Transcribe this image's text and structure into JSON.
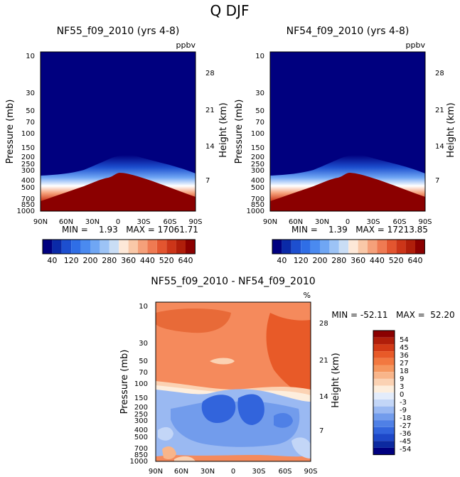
{
  "page": {
    "title": "Q DJF"
  },
  "chart_data": [
    {
      "type": "heatmap",
      "title": "NF55_f09_2010 (yrs 4-8)",
      "units": "ppbv",
      "ylabel": "Pressure (mb)",
      "ylabel_right": "Height (km)",
      "x_ticks": [
        "90N",
        "60N",
        "30N",
        "0",
        "30S",
        "60S",
        "90S"
      ],
      "y_ticks": [
        "10",
        "30",
        "50",
        "70",
        "100",
        "150",
        "200",
        "250",
        "300",
        "400",
        "500",
        "700",
        "850",
        "1000"
      ],
      "y_ticks_right": [
        "28",
        "21",
        "14",
        "7"
      ],
      "ylim": [
        1000,
        10
      ],
      "stats": "MIN =    1.93   MAX = 17061.71",
      "min": 1.93,
      "max": 17061.71,
      "surface_pressure_boundary_mb": [
        450,
        430,
        400,
        370,
        330,
        300,
        280,
        260,
        280,
        300,
        330,
        370,
        420,
        470,
        520
      ],
      "colorbar": {
        "orientation": "horizontal",
        "labels": [
          "40",
          "120",
          "200",
          "280",
          "360",
          "440",
          "520",
          "640"
        ],
        "levels": [
          40,
          80,
          120,
          160,
          200,
          240,
          280,
          320,
          360,
          400,
          440,
          480,
          520,
          560,
          600,
          640
        ],
        "colors": [
          "#00007f",
          "#0a2aa8",
          "#1d4fcf",
          "#2f6ee6",
          "#4a8af0",
          "#6fa6f4",
          "#9cc3f6",
          "#c9ddf5",
          "#fde8d8",
          "#f9c8a8",
          "#f5a07a",
          "#ef7a52",
          "#e3552f",
          "#cc3518",
          "#b01e0a",
          "#8b0000"
        ]
      }
    },
    {
      "type": "heatmap",
      "title": "NF54_f09_2010 (yrs 4-8)",
      "units": "ppbv",
      "ylabel": "Pressure (mb)",
      "ylabel_right": "Height (km)",
      "x_ticks": [
        "90N",
        "60N",
        "30N",
        "0",
        "30S",
        "60S",
        "90S"
      ],
      "y_ticks": [
        "10",
        "30",
        "50",
        "70",
        "100",
        "150",
        "200",
        "250",
        "300",
        "400",
        "500",
        "700",
        "850",
        "1000"
      ],
      "y_ticks_right": [
        "28",
        "21",
        "14",
        "7"
      ],
      "ylim": [
        1000,
        10
      ],
      "stats": "MIN =    1.39   MAX = 17213.85",
      "min": 1.39,
      "max": 17213.85,
      "surface_pressure_boundary_mb": [
        450,
        430,
        400,
        370,
        330,
        300,
        280,
        260,
        280,
        300,
        330,
        370,
        420,
        470,
        520
      ],
      "colorbar": {
        "orientation": "horizontal",
        "labels": [
          "40",
          "120",
          "200",
          "280",
          "360",
          "440",
          "520",
          "640"
        ],
        "levels": [
          40,
          80,
          120,
          160,
          200,
          240,
          280,
          320,
          360,
          400,
          440,
          480,
          520,
          560,
          600,
          640
        ],
        "colors": [
          "#00007f",
          "#0a2aa8",
          "#1d4fcf",
          "#2f6ee6",
          "#4a8af0",
          "#6fa6f4",
          "#9cc3f6",
          "#c9ddf5",
          "#fde8d8",
          "#f9c8a8",
          "#f5a07a",
          "#ef7a52",
          "#e3552f",
          "#cc3518",
          "#b01e0a",
          "#8b0000"
        ]
      }
    },
    {
      "type": "heatmap",
      "title": "NF55_f09_2010 - NF54_f09_2010",
      "units": "%",
      "ylabel": "Pressure (mb)",
      "ylabel_right": "Height (km)",
      "x_ticks": [
        "90N",
        "60N",
        "30N",
        "0",
        "30S",
        "60S",
        "90S"
      ],
      "y_ticks": [
        "10",
        "30",
        "50",
        "70",
        "100",
        "150",
        "200",
        "250",
        "300",
        "400",
        "500",
        "700",
        "850",
        "1000"
      ],
      "y_ticks_right": [
        "28",
        "21",
        "14",
        "7"
      ],
      "ylim": [
        1000,
        10
      ],
      "stats": "MIN = -52.11   MAX =  52.20",
      "min": -52.11,
      "max": 52.2,
      "colorbar": {
        "orientation": "vertical",
        "labels": [
          "54",
          "45",
          "36",
          "27",
          "18",
          "9",
          "3",
          "0",
          "-3",
          "-9",
          "-18",
          "-27",
          "-36",
          "-45",
          "-54"
        ],
        "colors": [
          "#8b0000",
          "#b01e0a",
          "#d23a16",
          "#e85a28",
          "#f27840",
          "#f5965e",
          "#f8b58a",
          "#fbd2b3",
          "#fdeedd",
          "#e3ecfb",
          "#c3d6f7",
          "#9ab9f2",
          "#729cec",
          "#4f80e6",
          "#3264dc",
          "#1e48c8",
          "#0c2aa0",
          "#00007f"
        ]
      },
      "regions": [
        {
          "sign": "positive",
          "pressure_range_mb": [
            10,
            150
          ],
          "approx_value": 20
        },
        {
          "sign": "negative",
          "pressure_range_mb": [
            150,
            950
          ],
          "approx_value": -15
        }
      ]
    }
  ]
}
